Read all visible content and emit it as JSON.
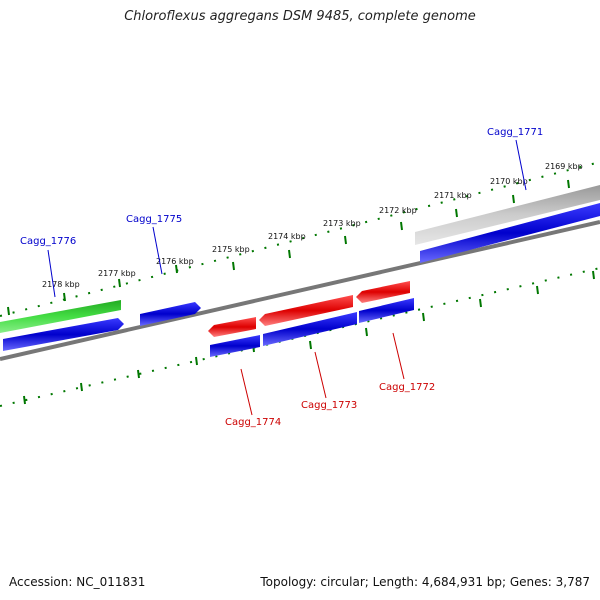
{
  "title": "Chloroflexus aggregans DSM 9485, complete genome",
  "footer": {
    "accession": "Accession: NC_011831",
    "stats": "Topology: circular; Length: 4,684,931 bp; Genes: 3,787"
  },
  "kbp_labels": [
    "2178 kbp",
    "2177 kbp",
    "2176 kbp",
    "2175 kbp",
    "2174 kbp",
    "2173 kbp",
    "2172 kbp",
    "2171 kbp",
    "2170 kbp",
    "2169 kbp"
  ],
  "genes": [
    {
      "id": "Cagg_1776",
      "color": "#0000cc"
    },
    {
      "id": "Cagg_1775",
      "color": "#0000cc"
    },
    {
      "id": "Cagg_1774",
      "color": "#cc0000"
    },
    {
      "id": "Cagg_1773",
      "color": "#cc0000"
    },
    {
      "id": "Cagg_1772",
      "color": "#cc0000"
    },
    {
      "id": "Cagg_1771",
      "color": "#0000cc"
    }
  ],
  "colors": {
    "cds_forward": "#0000dd",
    "cds_reverse": "#ee0000",
    "gene_forward": "#33cc33",
    "gc_skew": "#008800",
    "backbone": "#777777"
  }
}
